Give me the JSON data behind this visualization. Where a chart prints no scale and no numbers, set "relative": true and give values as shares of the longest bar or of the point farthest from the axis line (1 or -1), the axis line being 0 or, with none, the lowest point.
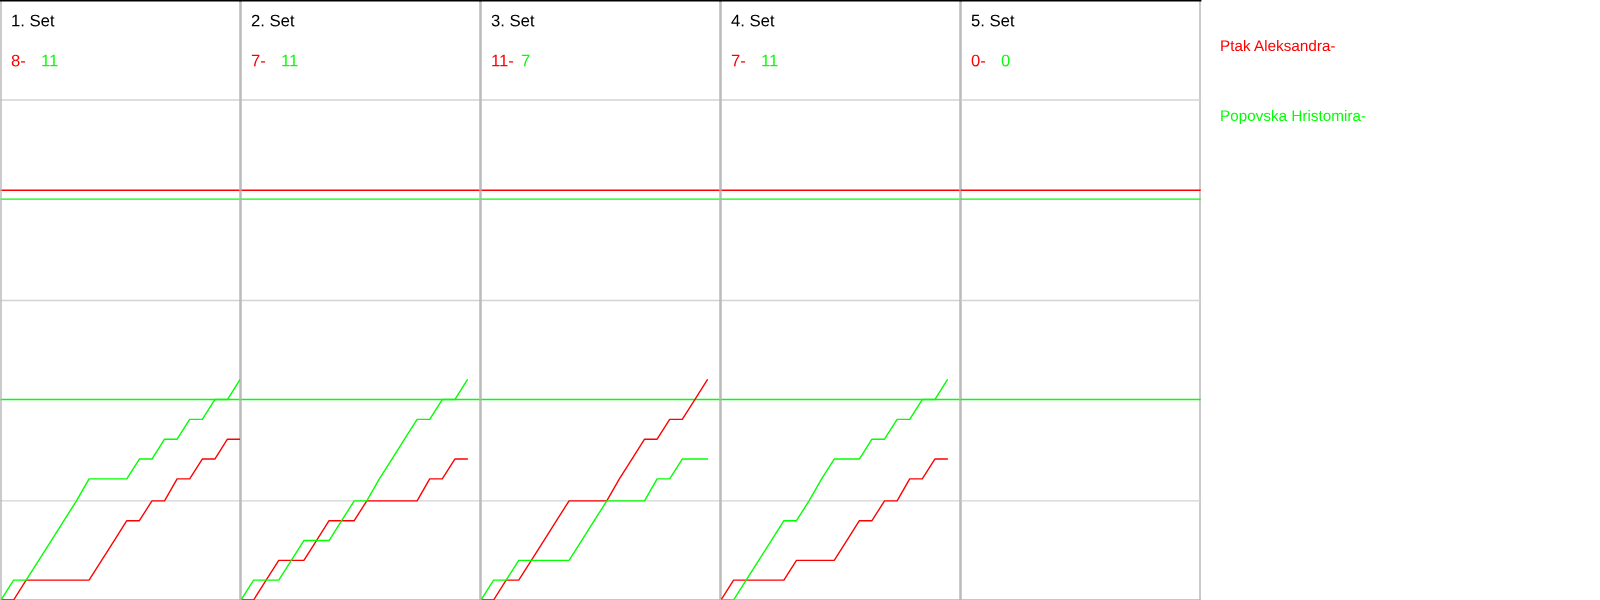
{
  "chart_data": [
    {
      "type": "line",
      "title": "1. Set",
      "annotations": [
        "8-",
        "11"
      ],
      "relative": true,
      "categories": [
        null,
        null,
        null,
        null,
        null,
        null,
        null,
        null,
        null,
        null,
        null,
        null,
        null,
        null,
        null,
        null,
        null,
        null,
        null,
        null
      ],
      "ref_lines": [
        {
          "axis": "y",
          "value": 0.45,
          "color": "#d3d3d3"
        },
        {
          "axis": "y",
          "value": 1.36,
          "color": "#d3d3d3"
        },
        {
          "axis": "y",
          "value": 2.27,
          "color": "#d3d3d3"
        },
        {
          "axis": "y",
          "value": 1.86,
          "color": "#ff0000"
        },
        {
          "axis": "y",
          "value": 1.82,
          "color": "#00ff00"
        },
        {
          "axis": "y",
          "value": 0.91,
          "color": "#00ff00"
        }
      ],
      "series": [
        {
          "name": "Ptak Aleksandra-",
          "color": "#ff0000",
          "values": [
            0,
            0,
            0.09,
            0.09,
            0.09,
            0.09,
            0.09,
            0.09,
            0.18,
            0.27,
            0.36,
            0.36,
            0.45,
            0.45,
            0.55,
            0.55,
            0.64,
            0.64,
            0.73,
            0.73
          ]
        },
        {
          "name": "Popovska Hristomira-",
          "color": "#00ff00",
          "values": [
            0,
            0.09,
            0.09,
            0.18,
            0.27,
            0.36,
            0.45,
            0.55,
            0.55,
            0.55,
            0.55,
            0.64,
            0.64,
            0.73,
            0.73,
            0.82,
            0.82,
            0.91,
            0.91,
            1
          ]
        }
      ]
    },
    {
      "type": "line",
      "title": "2. Set",
      "annotations": [
        "7-",
        "11"
      ],
      "relative": true,
      "categories": [
        null,
        null,
        null,
        null,
        null,
        null,
        null,
        null,
        null,
        null,
        null,
        null,
        null,
        null,
        null,
        null,
        null,
        null,
        null,
        null
      ],
      "ref_lines": [
        {
          "axis": "y",
          "value": 0.45,
          "color": "#d3d3d3"
        },
        {
          "axis": "y",
          "value": 1.36,
          "color": "#d3d3d3"
        },
        {
          "axis": "y",
          "value": 2.27,
          "color": "#d3d3d3"
        },
        {
          "axis": "y",
          "value": 1.86,
          "color": "#ff0000"
        },
        {
          "axis": "y",
          "value": 1.82,
          "color": "#00ff00"
        },
        {
          "axis": "y",
          "value": 0.91,
          "color": "#00ff00"
        }
      ],
      "series": [
        {
          "color": "#ff0000",
          "values": [
            0,
            0,
            0.09,
            0.18,
            0.18,
            0.18,
            0.27,
            0.36,
            0.36,
            0.36,
            0.45,
            0.45,
            0.45,
            0.45,
            0.45,
            0.55,
            0.55,
            0.64,
            0.64,
            null
          ]
        },
        {
          "color": "#00ff00",
          "values": [
            0,
            0.09,
            0.09,
            0.09,
            0.18,
            0.27,
            0.27,
            0.27,
            0.36,
            0.45,
            0.45,
            0.55,
            0.64,
            0.73,
            0.82,
            0.82,
            0.91,
            0.91,
            1,
            null
          ]
        }
      ]
    },
    {
      "type": "line",
      "title": "3. Set",
      "annotations": [
        "11-",
        "7"
      ],
      "relative": true,
      "categories": [
        null,
        null,
        null,
        null,
        null,
        null,
        null,
        null,
        null,
        null,
        null,
        null,
        null,
        null,
        null,
        null,
        null,
        null,
        null,
        null
      ],
      "ref_lines": [
        {
          "axis": "y",
          "value": 0.45,
          "color": "#d3d3d3"
        },
        {
          "axis": "y",
          "value": 1.36,
          "color": "#d3d3d3"
        },
        {
          "axis": "y",
          "value": 2.27,
          "color": "#d3d3d3"
        },
        {
          "axis": "y",
          "value": 1.86,
          "color": "#ff0000"
        },
        {
          "axis": "y",
          "value": 1.82,
          "color": "#00ff00"
        },
        {
          "axis": "y",
          "value": 0.91,
          "color": "#00ff00"
        }
      ],
      "series": [
        {
          "color": "#ff0000",
          "values": [
            0,
            0,
            0.09,
            0.09,
            0.18,
            0.27,
            0.36,
            0.45,
            0.45,
            0.45,
            0.45,
            0.55,
            0.64,
            0.73,
            0.73,
            0.82,
            0.82,
            0.91,
            1,
            null
          ]
        },
        {
          "color": "#00ff00",
          "values": [
            0,
            0.09,
            0.09,
            0.18,
            0.18,
            0.18,
            0.18,
            0.18,
            0.27,
            0.36,
            0.45,
            0.45,
            0.45,
            0.45,
            0.55,
            0.55,
            0.64,
            0.64,
            0.64,
            null
          ]
        }
      ]
    },
    {
      "type": "line",
      "title": "4. Set",
      "annotations": [
        "7-",
        "11",
        "5. Set",
        "0-",
        "0"
      ],
      "relative": true,
      "categories": [
        null,
        null,
        null,
        null,
        null,
        null,
        null,
        null,
        null,
        null,
        null,
        null,
        null,
        null,
        null,
        null,
        null,
        null,
        null,
        null
      ],
      "ref_lines": [
        {
          "axis": "y",
          "value": 0.45,
          "color": "#d3d3d3"
        },
        {
          "axis": "y",
          "value": 1.36,
          "color": "#d3d3d3"
        },
        {
          "axis": "y",
          "value": 2.27,
          "color": "#d3d3d3"
        },
        {
          "axis": "y",
          "value": 1.86,
          "color": "#ff0000"
        },
        {
          "axis": "y",
          "value": 1.82,
          "color": "#00ff00"
        },
        {
          "axis": "y",
          "value": 0.91,
          "color": "#00ff00"
        }
      ],
      "series": [
        {
          "color": "#ff0000",
          "values": [
            0,
            0.09,
            0.09,
            0.09,
            0.09,
            0.09,
            0.18,
            0.18,
            0.18,
            0.18,
            0.27,
            0.36,
            0.36,
            0.45,
            0.45,
            0.55,
            0.55,
            0.64,
            0.64,
            null
          ]
        },
        {
          "color": "#00ff00",
          "values": [
            0,
            0,
            0.09,
            0.18,
            0.27,
            0.36,
            0.36,
            0.45,
            0.55,
            0.64,
            0.64,
            0.64,
            0.73,
            0.73,
            0.82,
            0.82,
            0.91,
            0.91,
            1,
            null
          ]
        }
      ]
    }
  ]
}
